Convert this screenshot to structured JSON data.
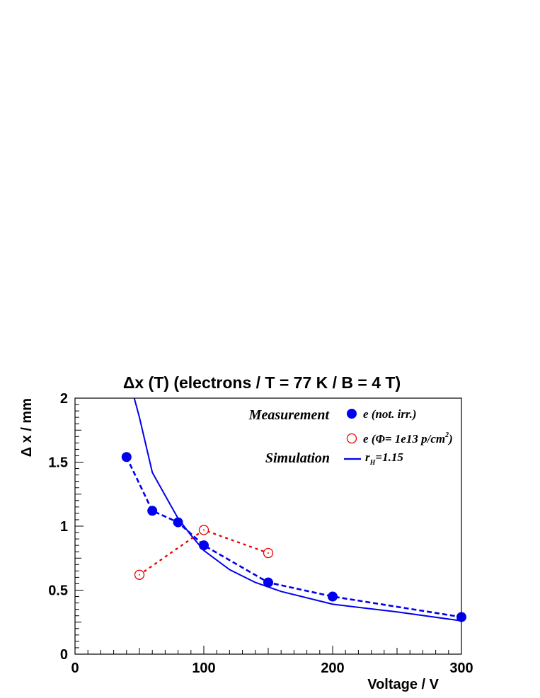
{
  "chart_data": {
    "type": "scatter",
    "title": "Δx (T)  (electrons / T = 77 K  /  B = 4 T)",
    "xlabel": "Voltage / V",
    "ylabel": "Δ x / mm",
    "xlim": [
      0,
      300
    ],
    "ylim": [
      0,
      2
    ],
    "x_ticks": [
      {
        "value": 0,
        "label": "0"
      },
      {
        "value": 100,
        "label": "100"
      },
      {
        "value": 200,
        "label": "200"
      },
      {
        "value": 300,
        "label": "300"
      }
    ],
    "y_ticks": [
      {
        "value": 0,
        "label": "0"
      },
      {
        "value": 0.5,
        "label": "0.5"
      },
      {
        "value": 1,
        "label": "1"
      },
      {
        "value": 1.5,
        "label": "1.5"
      },
      {
        "value": 2,
        "label": "2"
      }
    ],
    "grid": false,
    "legend": {
      "placement": "top-right",
      "measurement_label": "Measurement",
      "simulation_label": "Simulation"
    },
    "series": [
      {
        "name": "e (not. irr.)",
        "style": "filled-circle-dashed",
        "color": "#0000ee",
        "x": [
          40,
          60,
          80,
          100,
          150,
          200,
          300
        ],
        "y": [
          1.54,
          1.12,
          1.03,
          0.85,
          0.56,
          0.45,
          0.29
        ]
      },
      {
        "name": "e (Φ= 1e13 p/cm²)",
        "legend_parts": {
          "main": "e (Φ= 1e13 p/cm",
          "sup": "2",
          "tail": ")"
        },
        "style": "open-circle-dotted",
        "color": "#ee0000",
        "x": [
          50,
          100,
          150
        ],
        "y": [
          0.62,
          0.97,
          0.79
        ]
      },
      {
        "name": "rH=1.15",
        "legend_parts": {
          "main": "r",
          "sub": "H",
          "tail": "=1.15"
        },
        "style": "solid-line",
        "color": "#0000ee",
        "x": [
          46,
          50,
          60,
          70,
          80,
          90,
          100,
          120,
          140,
          160,
          200,
          250,
          300
        ],
        "y": [
          2.0,
          1.85,
          1.42,
          1.24,
          1.06,
          0.93,
          0.81,
          0.66,
          0.56,
          0.49,
          0.39,
          0.33,
          0.26
        ]
      }
    ]
  }
}
